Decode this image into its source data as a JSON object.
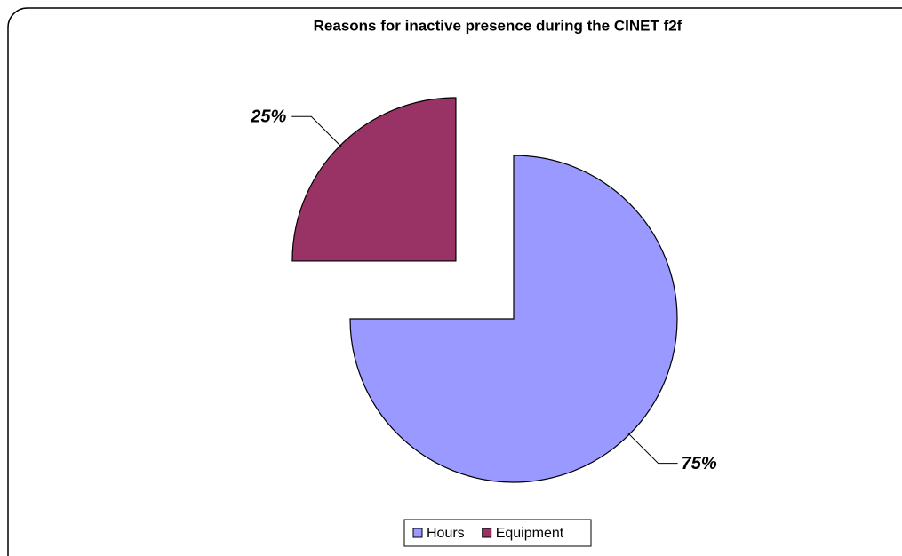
{
  "chart_data": {
    "type": "pie",
    "title": "Reasons for inactive presence during the CINET f2f",
    "categories": [
      "Hours",
      "Equipment"
    ],
    "values": [
      75,
      25
    ],
    "value_labels": [
      "75%",
      "25%"
    ],
    "colors": [
      "#9999ff",
      "#993366"
    ],
    "legend": "bottom"
  }
}
